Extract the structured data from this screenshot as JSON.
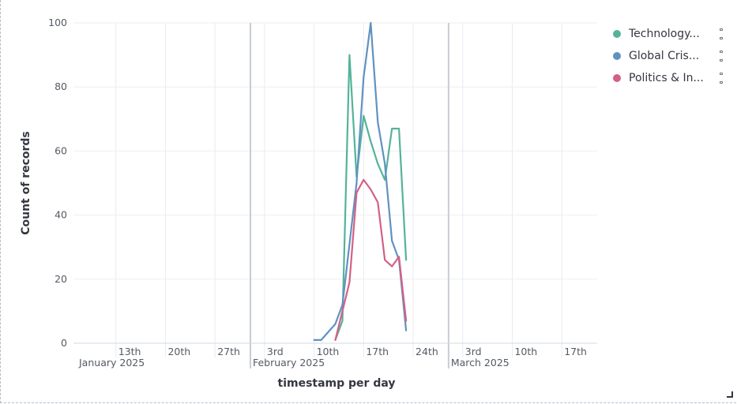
{
  "chart_data": {
    "type": "line",
    "xlabel": "timestamp per day",
    "ylabel": "Count of records",
    "ylim": [
      0,
      100
    ],
    "y_ticks": [
      0,
      20,
      40,
      60,
      80,
      100
    ],
    "x_domain": [
      "2025-01-07",
      "2025-03-22"
    ],
    "x_ticks": [
      {
        "date": "2025-01-13",
        "label": "13th"
      },
      {
        "date": "2025-01-20",
        "label": "20th"
      },
      {
        "date": "2025-01-27",
        "label": "27th"
      },
      {
        "date": "2025-02-03",
        "label": "3rd"
      },
      {
        "date": "2025-02-10",
        "label": "10th"
      },
      {
        "date": "2025-02-17",
        "label": "17th"
      },
      {
        "date": "2025-02-24",
        "label": "24th"
      },
      {
        "date": "2025-03-03",
        "label": "3rd"
      },
      {
        "date": "2025-03-10",
        "label": "10th"
      },
      {
        "date": "2025-03-17",
        "label": "17th"
      }
    ],
    "month_markers": [
      {
        "date": "2025-02-01",
        "label": "February 2025"
      },
      {
        "date": "2025-03-01",
        "label": "March 2025"
      }
    ],
    "first_month_label": "January 2025",
    "grid": true,
    "legend_position": "top-right",
    "series": [
      {
        "name": "Technology...",
        "color": "#54b399",
        "points": [
          [
            "2025-02-13",
            1
          ],
          [
            "2025-02-14",
            7
          ],
          [
            "2025-02-15",
            90
          ],
          [
            "2025-02-16",
            52
          ],
          [
            "2025-02-17",
            71
          ],
          [
            "2025-02-18",
            63
          ],
          [
            "2025-02-19",
            56
          ],
          [
            "2025-02-20",
            51
          ],
          [
            "2025-02-21",
            67
          ],
          [
            "2025-02-22",
            67
          ],
          [
            "2025-02-23",
            26
          ]
        ]
      },
      {
        "name": "Global Cris...",
        "color": "#6092c0",
        "points": [
          [
            "2025-02-10",
            1
          ],
          [
            "2025-02-11",
            1
          ],
          [
            "2025-02-13",
            6
          ],
          [
            "2025-02-14",
            12
          ],
          [
            "2025-02-16",
            50
          ],
          [
            "2025-02-17",
            83
          ],
          [
            "2025-02-18",
            100
          ],
          [
            "2025-02-19",
            69
          ],
          [
            "2025-02-20",
            56
          ],
          [
            "2025-02-21",
            32
          ],
          [
            "2025-02-22",
            26
          ],
          [
            "2025-02-23",
            4
          ]
        ]
      },
      {
        "name": "Politics & In...",
        "color": "#d36086",
        "points": [
          [
            "2025-02-13",
            1
          ],
          [
            "2025-02-15",
            19
          ],
          [
            "2025-02-16",
            47
          ],
          [
            "2025-02-17",
            51
          ],
          [
            "2025-02-18",
            48
          ],
          [
            "2025-02-19",
            44
          ],
          [
            "2025-02-20",
            26
          ],
          [
            "2025-02-21",
            24
          ],
          [
            "2025-02-22",
            27
          ],
          [
            "2025-02-23",
            7
          ]
        ]
      }
    ]
  }
}
